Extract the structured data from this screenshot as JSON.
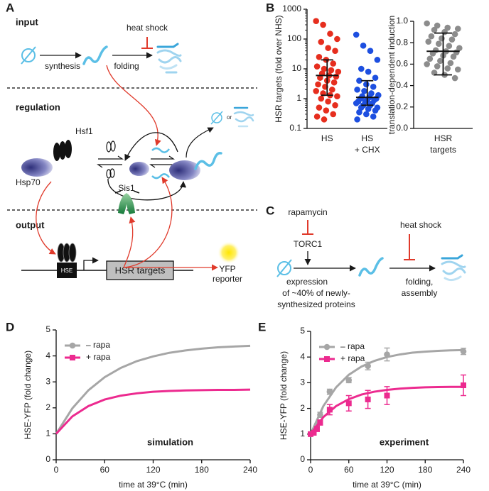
{
  "panel_labels": [
    "A",
    "B",
    "C",
    "D",
    "E"
  ],
  "diagram_a": {
    "input": "input",
    "heat_shock": "heat shock",
    "synthesis": "synthesis",
    "folding": "folding",
    "regulation": "regulation",
    "or": "or",
    "hsf1": "Hsf1",
    "hsp70": "Hsp70",
    "sis1": "Sis1",
    "output": "output",
    "hse": "HSE",
    "hsr_targets": "HSR targets",
    "yfp": "YFP",
    "reporter": "reporter"
  },
  "diagram_c": {
    "rapamycin": "rapamycin",
    "torc1": "TORC1",
    "heat_shock": "heat shock",
    "expression": [
      "expression",
      "of ~40% of newly-",
      "synthesized proteins"
    ],
    "folding": [
      "folding,",
      "assembly"
    ]
  },
  "chart_data": [
    {
      "type": "strip",
      "ylabel": "HSR targets (fold over NHS)",
      "log_y": true,
      "ylim": [
        0.1,
        1000
      ],
      "yticks": [
        0.1,
        1,
        10,
        100,
        1000
      ],
      "categories": [
        [
          "HS"
        ],
        [
          "HS",
          "+ CHX"
        ]
      ],
      "series": [
        {
          "color": "#e62e1e",
          "median": 6,
          "range": [
            1.3,
            20
          ],
          "values": [
            400,
            300,
            150,
            100,
            80,
            50,
            40,
            25,
            20,
            15,
            12,
            10,
            9,
            8,
            7,
            6,
            5.5,
            5,
            4,
            3.5,
            3,
            2.5,
            2,
            1.8,
            1.5,
            1.3,
            1.2,
            1,
            0.8,
            0.6,
            0.5,
            0.4,
            0.3,
            0.25,
            0.2
          ]
        },
        {
          "color": "#1d4fe0",
          "median": 1.1,
          "range": [
            0.6,
            4
          ],
          "values": [
            140,
            60,
            40,
            20,
            10,
            8,
            5,
            4,
            3,
            2.5,
            2,
            1.8,
            1.5,
            1.3,
            1.2,
            1.1,
            1,
            1,
            0.9,
            0.9,
            0.8,
            0.8,
            0.7,
            0.7,
            0.6,
            0.6,
            0.5,
            0.5,
            0.45,
            0.4,
            0.35,
            0.3,
            0.25,
            0.2
          ]
        }
      ]
    },
    {
      "type": "strip",
      "ylabel": "translation-dependent induction",
      "ylim": [
        0,
        1
      ],
      "yticks": [
        {
          "value": 0,
          "label": "0.0"
        },
        0.2,
        0.4,
        0.6,
        0.8,
        {
          "value": 1,
          "label": "1.0"
        }
      ],
      "categories": [
        [
          "HSR",
          "targets"
        ]
      ],
      "series": [
        {
          "color": "#8c8c8c",
          "median": 0.72,
          "range": [
            0.5,
            0.89
          ],
          "values": [
            0.98,
            0.96,
            0.94,
            0.93,
            0.92,
            0.9,
            0.88,
            0.86,
            0.84,
            0.83,
            0.81,
            0.79,
            0.77,
            0.75,
            0.73,
            0.72,
            0.71,
            0.7,
            0.68,
            0.67,
            0.65,
            0.63,
            0.61,
            0.6,
            0.58,
            0.56,
            0.55,
            0.52,
            0.5,
            0.47
          ]
        }
      ]
    },
    {
      "type": "line",
      "xlabel": "time at 39°C (min)",
      "ylabel": "HSE-YFP (fold change)",
      "annotation": "simulation",
      "legend": "upper left",
      "xlim": [
        0,
        240
      ],
      "xticks": [
        0,
        60,
        120,
        180,
        240
      ],
      "ylim": [
        0,
        5
      ],
      "yticks": [
        0,
        1,
        2,
        3,
        4,
        5
      ],
      "series": [
        {
          "name": "– rapa",
          "color": "#a6a6a6",
          "marker": "circle",
          "x": [
            0,
            20,
            40,
            60,
            80,
            100,
            120,
            140,
            160,
            180,
            200,
            220,
            240
          ],
          "values": [
            1,
            1.98,
            2.68,
            3.18,
            3.54,
            3.8,
            3.98,
            4.12,
            4.21,
            4.28,
            4.33,
            4.36,
            4.39
          ]
        },
        {
          "name": "+ rapa",
          "color": "#ec2a8f",
          "marker": "square",
          "x": [
            0,
            20,
            40,
            60,
            80,
            100,
            120,
            140,
            160,
            180,
            200,
            220,
            240
          ],
          "values": [
            1,
            1.67,
            2.07,
            2.32,
            2.47,
            2.56,
            2.62,
            2.65,
            2.67,
            2.68,
            2.69,
            2.69,
            2.7
          ]
        }
      ]
    },
    {
      "type": "line",
      "xlabel": "time at 39°C (min)",
      "ylabel": "HSE-YFP (fold change)",
      "annotation": "experiment",
      "legend": "upper left",
      "xlim": [
        0,
        240
      ],
      "xticks": [
        0,
        60,
        120,
        180,
        240
      ],
      "ylim": [
        0,
        5
      ],
      "yticks": [
        0,
        1,
        2,
        3,
        4,
        5
      ],
      "series": [
        {
          "name": "– rapa",
          "color": "#a6a6a6",
          "marker": "circle",
          "x": [
            0,
            5,
            10,
            15,
            30,
            60,
            90,
            120,
            240
          ],
          "values": [
            1,
            1.1,
            1.35,
            1.75,
            2.65,
            3.1,
            3.65,
            4.1,
            4.22
          ],
          "errors": [
            0.05,
            0.05,
            0.05,
            0.1,
            0.1,
            0.1,
            0.15,
            0.25,
            0.12
          ],
          "fit_x": [
            0,
            20,
            40,
            60,
            80,
            100,
            120,
            140,
            160,
            180,
            200,
            220,
            240
          ],
          "fit_values": [
            1,
            2.09,
            2.82,
            3.31,
            3.63,
            3.85,
            4,
            4.1,
            4.17,
            4.21,
            4.24,
            4.26,
            4.27
          ]
        },
        {
          "name": "+ rapa",
          "color": "#ec2a8f",
          "marker": "square",
          "x": [
            0,
            5,
            10,
            15,
            30,
            60,
            90,
            120,
            240
          ],
          "values": [
            1,
            1.05,
            1.2,
            1.45,
            1.95,
            2.2,
            2.35,
            2.5,
            2.9
          ],
          "errors": [
            0.05,
            0.05,
            0.1,
            0.1,
            0.2,
            0.3,
            0.35,
            0.35,
            0.4
          ],
          "fit_x": [
            0,
            20,
            40,
            60,
            80,
            100,
            120,
            140,
            160,
            180,
            200,
            220,
            240
          ],
          "fit_values": [
            1,
            1.66,
            2.09,
            2.36,
            2.54,
            2.65,
            2.72,
            2.77,
            2.8,
            2.82,
            2.83,
            2.84,
            2.84
          ]
        }
      ]
    }
  ]
}
